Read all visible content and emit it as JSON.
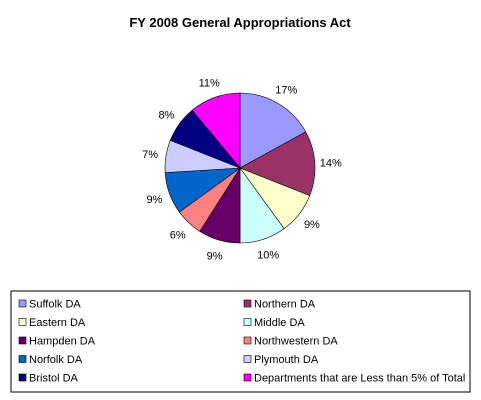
{
  "chart_data": {
    "type": "pie",
    "title": "FY 2008 General Appropriations Act",
    "slices": [
      {
        "label": "Suffolk DA",
        "value": 17,
        "pct_label": "17%",
        "color": "#9999ff"
      },
      {
        "label": "Northern DA",
        "value": 14,
        "pct_label": "14%",
        "color": "#993366"
      },
      {
        "label": "Eastern DA",
        "value": 9,
        "pct_label": "9%",
        "color": "#ffffcc"
      },
      {
        "label": "Middle DA",
        "value": 10,
        "pct_label": "10%",
        "color": "#ccffff"
      },
      {
        "label": "Hampden DA",
        "value": 9,
        "pct_label": "9%",
        "color": "#660066"
      },
      {
        "label": "Northwestern DA",
        "value": 6,
        "pct_label": "6%",
        "color": "#ff8080"
      },
      {
        "label": "Norfolk DA",
        "value": 9,
        "pct_label": "9%",
        "color": "#0066cc"
      },
      {
        "label": "Plymouth DA",
        "value": 7,
        "pct_label": "7%",
        "color": "#ccccff"
      },
      {
        "label": "Bristol DA",
        "value": 8,
        "pct_label": "8%",
        "color": "#000080"
      },
      {
        "label": "Departments that are Less than 5% of Total",
        "value": 11,
        "pct_label": "11%",
        "color": "#ff00ff"
      }
    ],
    "legend_position": "bottom",
    "legend_columns": 2
  }
}
